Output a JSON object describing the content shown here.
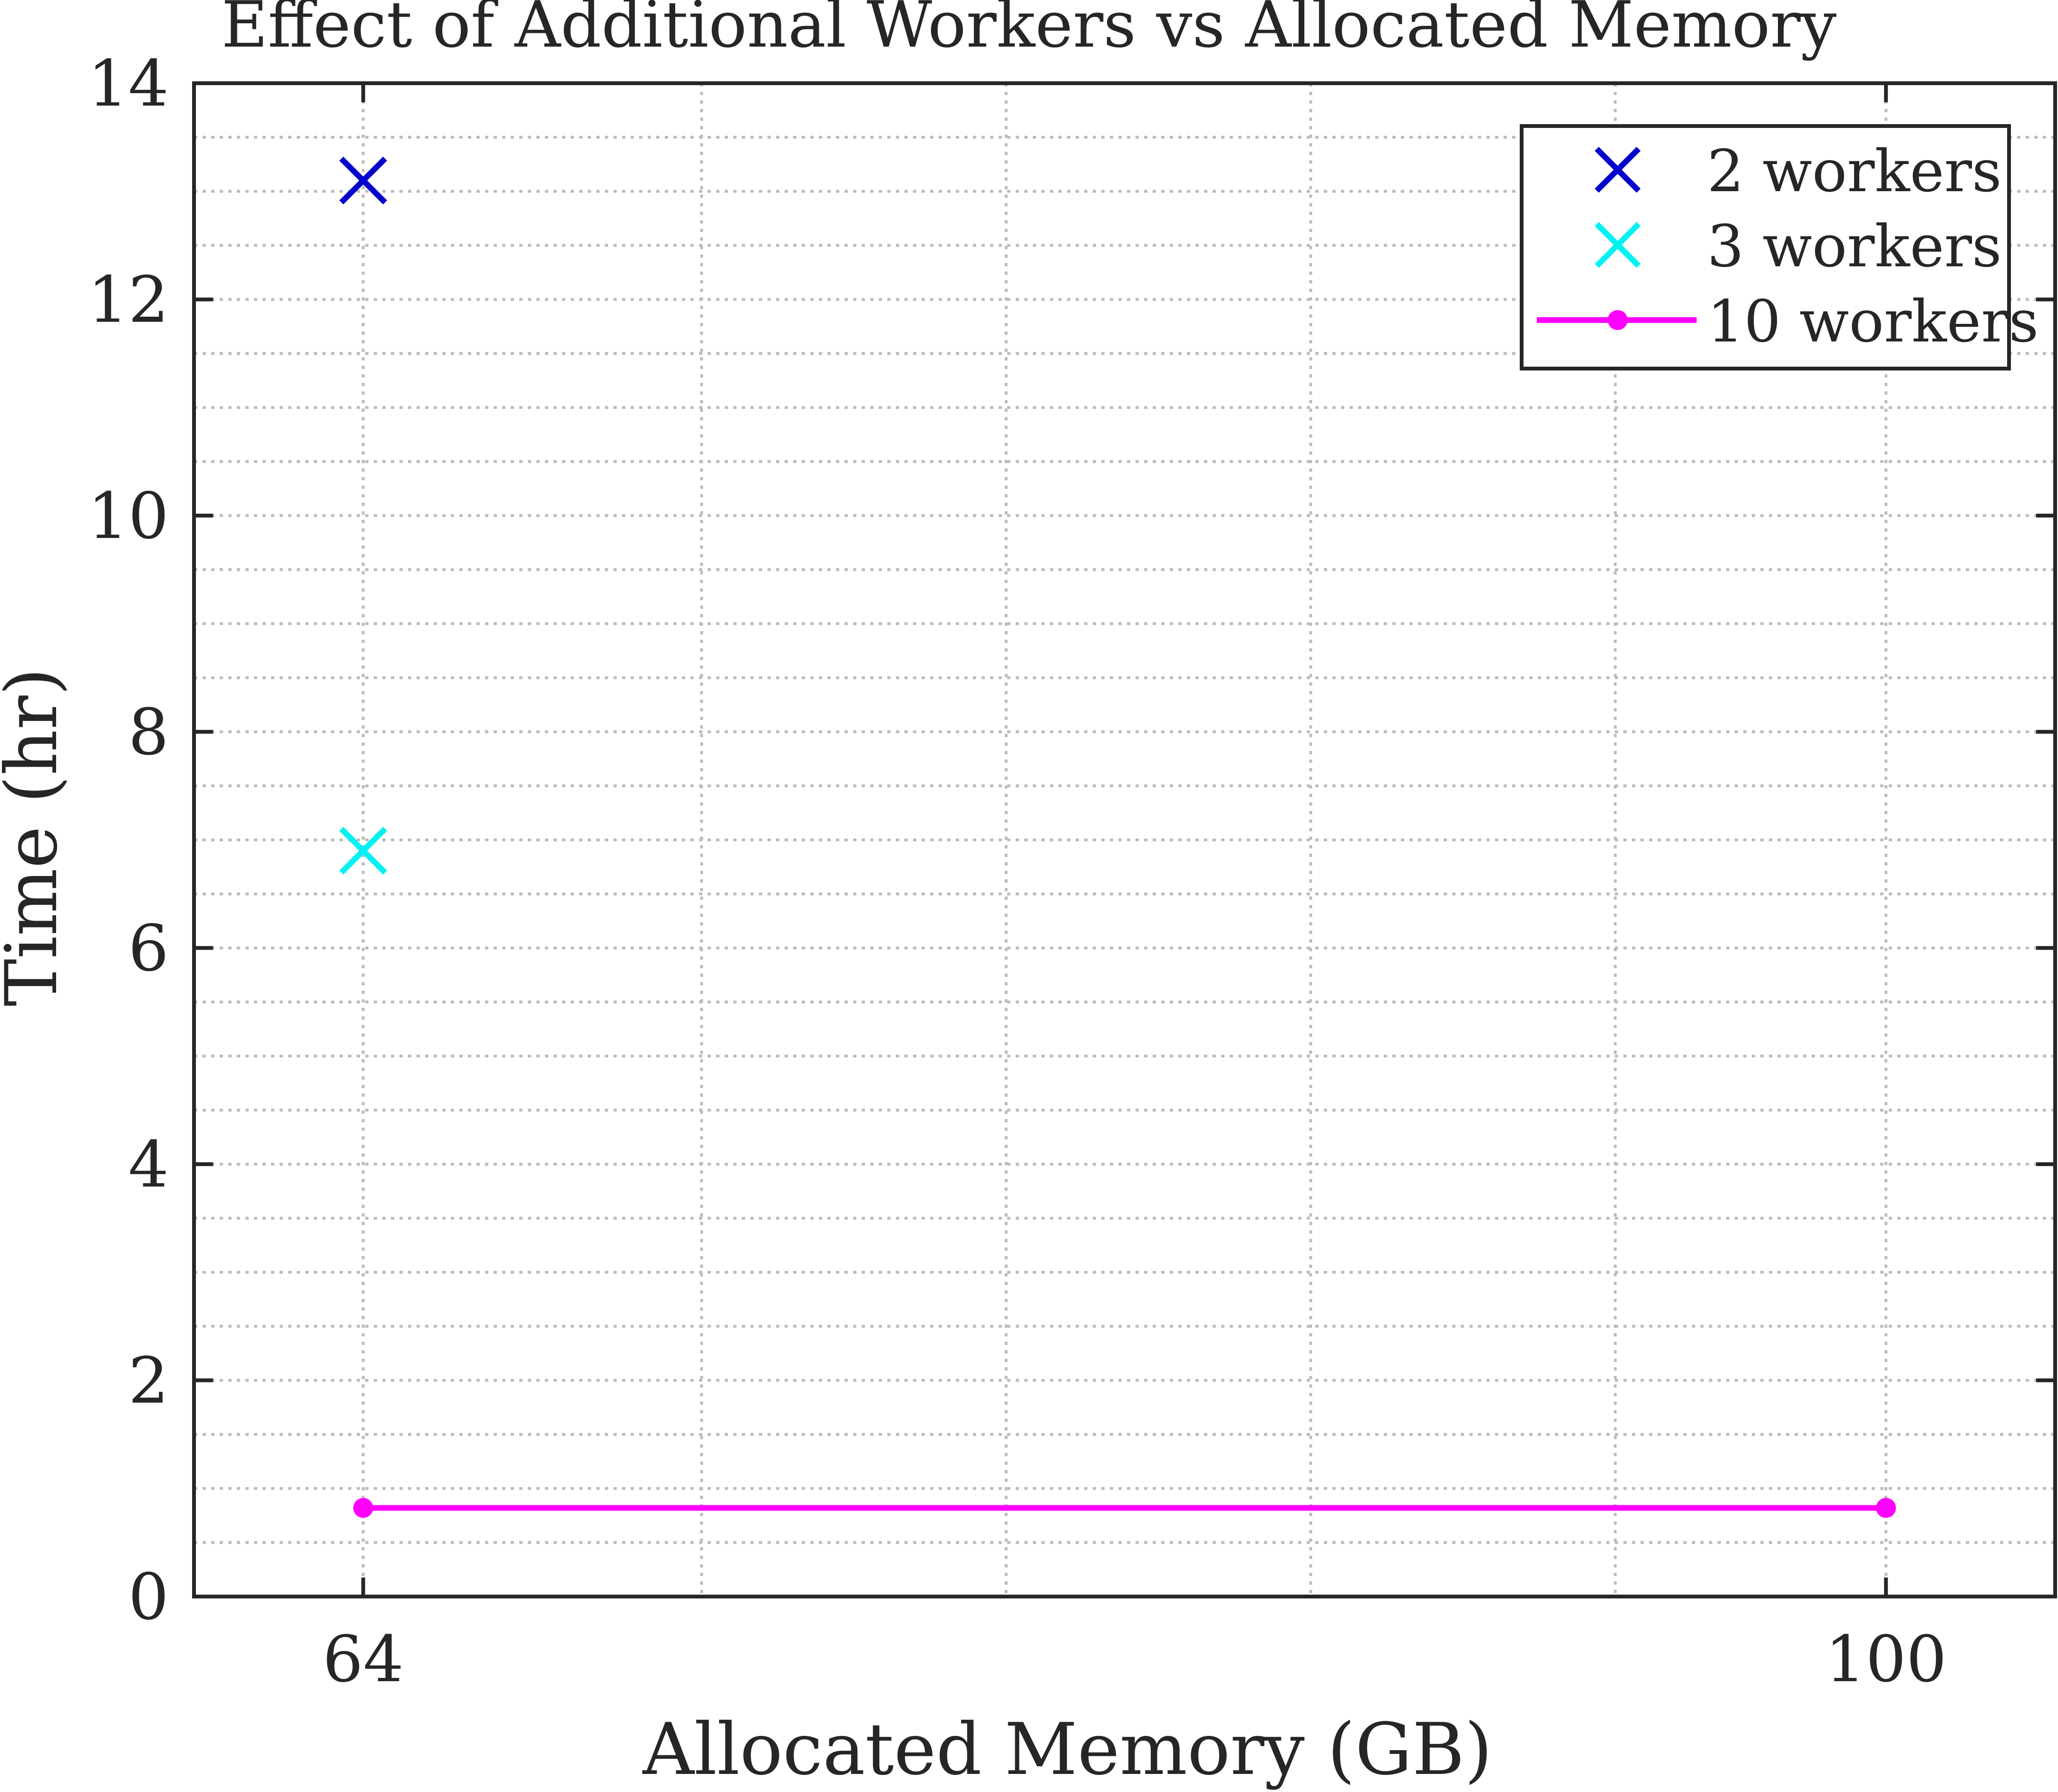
{
  "chart_data": {
    "type": "line",
    "title": "Effect of Additional Workers vs Allocated Memory",
    "xlabel": "Allocated Memory (GB)",
    "ylabel": "Time (hr)",
    "xlim": [
      60,
      104
    ],
    "ylim": [
      0,
      14
    ],
    "x_ticks": [
      64,
      100
    ],
    "y_ticks": [
      0,
      2,
      4,
      6,
      8,
      10,
      12,
      14
    ],
    "x_grid": [
      64,
      72,
      79.2,
      86.4,
      93.6,
      100
    ],
    "y_minor_step": 0.5,
    "grid": true,
    "legend_position": "top-right",
    "series": [
      {
        "name": "2 workers",
        "marker": "x",
        "line": false,
        "color": "#0000cc",
        "points": [
          [
            64,
            13.1
          ]
        ]
      },
      {
        "name": "3 workers",
        "marker": "x",
        "line": false,
        "color": "#00f2f2",
        "points": [
          [
            64,
            6.9
          ]
        ]
      },
      {
        "name": "10 workers",
        "marker": "dot",
        "line": true,
        "color": "#ff00ff",
        "points": [
          [
            64,
            0.82
          ],
          [
            100,
            0.82
          ]
        ]
      }
    ]
  }
}
